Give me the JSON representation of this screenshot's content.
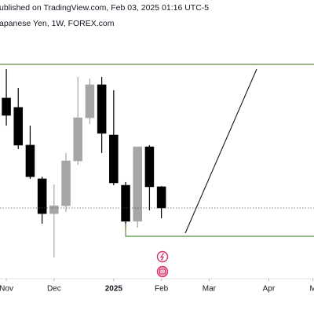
{
  "chart_data": {
    "type": "candlestick",
    "title": "ublished on TradingView.com, Feb 03, 2025 01:16 UTC-5",
    "subtitle": "apanese Yen, 1W, FOREX.com",
    "x": [
      0,
      1,
      2,
      3,
      4,
      5,
      6,
      7,
      8,
      9,
      10,
      11,
      12,
      13
    ],
    "open": [
      157.1,
      156.6,
      154.59,
      152.79,
      150.94,
      151.36,
      153.75,
      156.05,
      157.81,
      155.13,
      152.45,
      150.53,
      154.5,
      152.37
    ],
    "high": [
      158.65,
      157.64,
      155.63,
      152.91,
      152.49,
      154.17,
      158.23,
      158.15,
      158.23,
      157.52,
      152.62,
      154.5,
      154.59,
      152.41
    ],
    "low": [
      155.63,
      154.38,
      152.79,
      150.4,
      148.6,
      151.03,
      153.54,
      155.72,
      154.17,
      152.45,
      150.19,
      150.19,
      151.11,
      150.69
    ],
    "close": [
      156.18,
      154.59,
      152.91,
      150.94,
      151.36,
      153.75,
      156.05,
      157.81,
      155.22,
      152.58,
      150.53,
      154.5,
      152.37,
      151.24
    ],
    "up_color": "#a6a6a6",
    "down_color": "#000000",
    "xlim": [
      -0.53,
      25.79
    ],
    "ylim": [
      147.47,
      162.33
    ],
    "xticks": [
      {
        "value": 0,
        "label": "Nov"
      },
      {
        "value": 4,
        "label": "Dec"
      },
      {
        "value": 9,
        "label": "2025"
      },
      {
        "value": 13,
        "label": "Feb"
      },
      {
        "value": 17,
        "label": "Mar"
      },
      {
        "value": 22,
        "label": "Apr"
      },
      {
        "value": 25.7,
        "label": "M"
      }
    ]
  }
}
